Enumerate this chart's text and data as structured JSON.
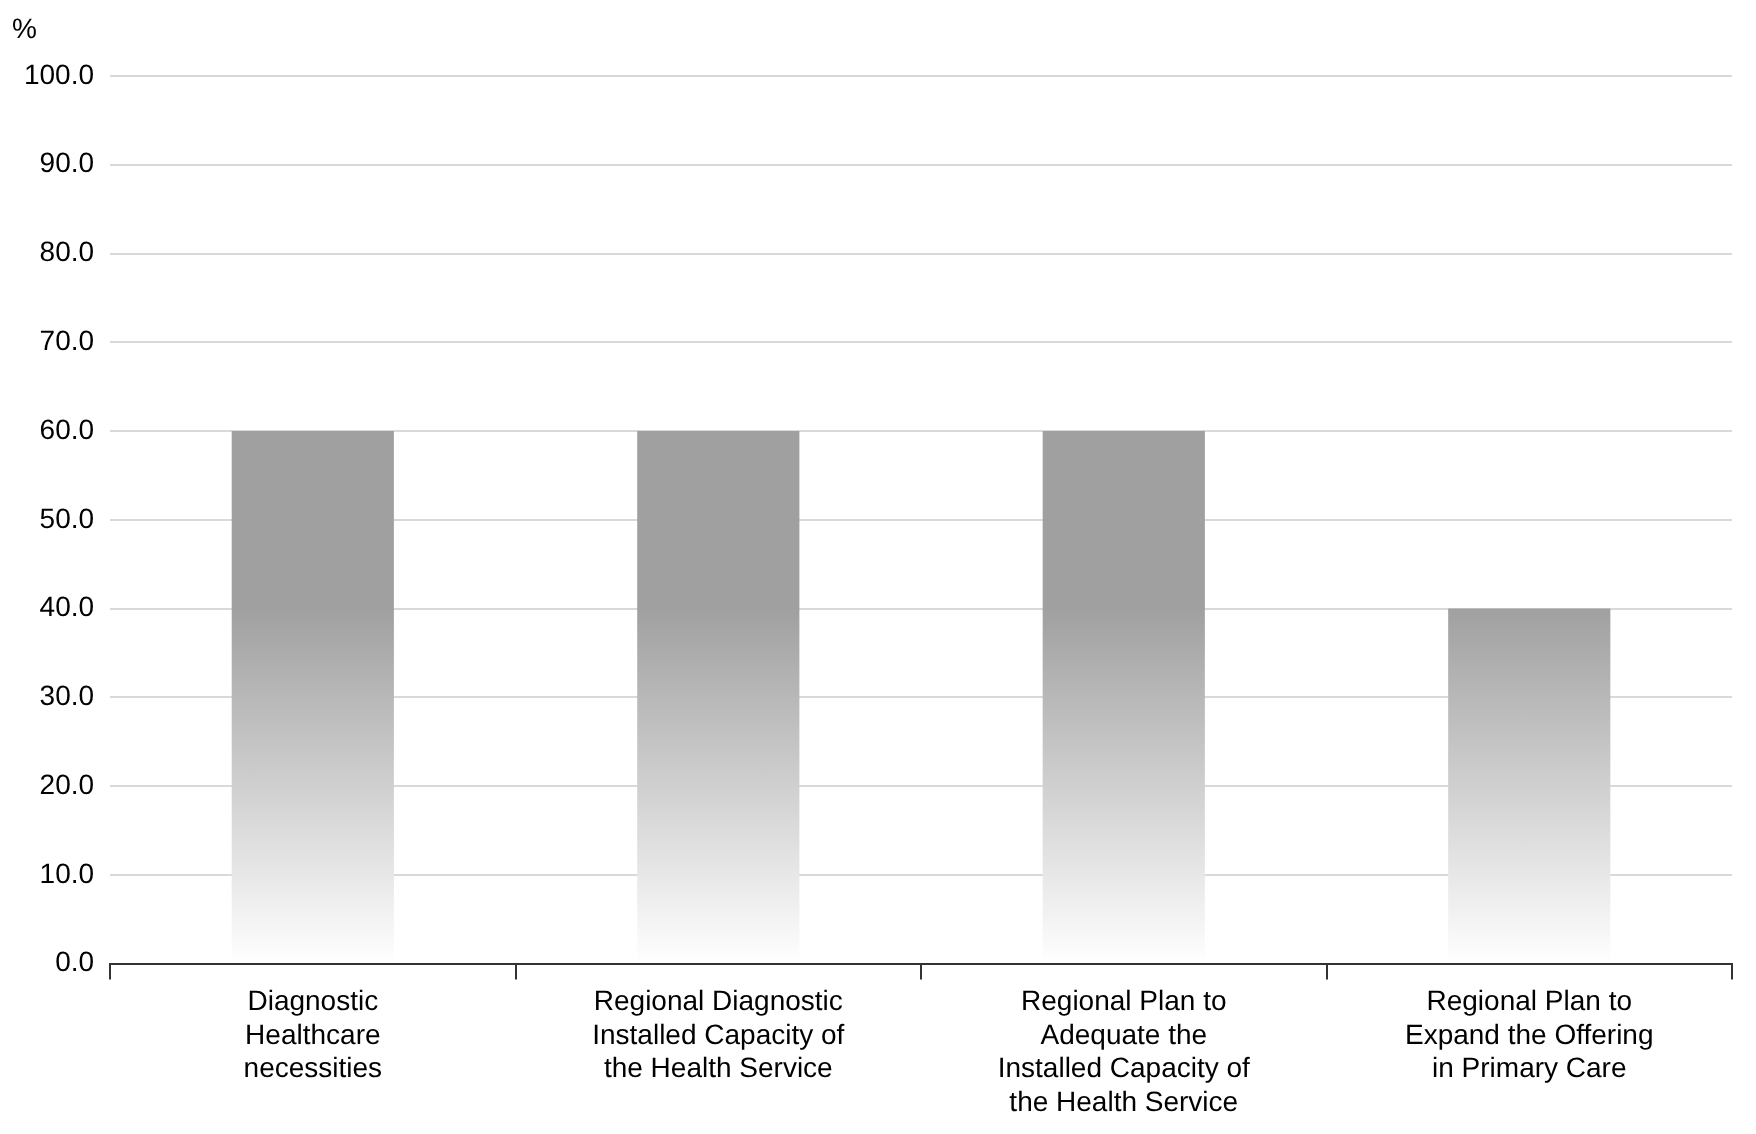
{
  "chart_data": {
    "type": "bar",
    "ylabel": "%",
    "categories": [
      "Diagnostic Healthcare necessities",
      "Regional Diagnostic Installed Capacity of the Health Service",
      "Regional Plan to Adequate the Installed Capacity of the Health Service",
      "Regional Plan to Expand the Offering in Primary Care"
    ],
    "values": [
      60,
      60,
      60,
      40
    ],
    "color": "#a0a0a0",
    "ylim": [
      0,
      100
    ],
    "yticks": [
      {
        "value": 0,
        "label": "0.0"
      },
      {
        "value": 10,
        "label": "10.0"
      },
      {
        "value": 20,
        "label": "20.0"
      },
      {
        "value": 30,
        "label": "30.0"
      },
      {
        "value": 40,
        "label": "40.0"
      },
      {
        "value": 50,
        "label": "50.0"
      },
      {
        "value": 60,
        "label": "60.0"
      },
      {
        "value": 70,
        "label": "70.0"
      },
      {
        "value": 80,
        "label": "80.0"
      },
      {
        "value": 90,
        "label": "90.0"
      },
      {
        "value": 100,
        "label": "100.0"
      }
    ],
    "grid": "y",
    "legend": false
  }
}
